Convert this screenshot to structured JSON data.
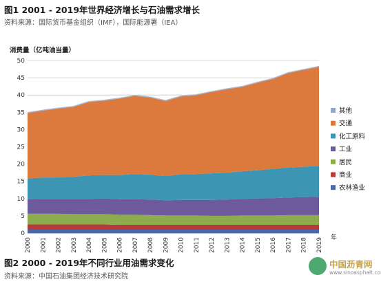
{
  "header": {
    "title": "图1   2001 - 2019年世界经济增长与石油需求增长",
    "source": "资料来源：国际货币基金组织（IMF），国际能源署（IEA）"
  },
  "footer": {
    "title": "图2   2000 - 2019年不同行业用油需求变化",
    "source": "资料来源：中国石油集团经济技术研究院"
  },
  "watermark": {
    "name": "中国沥青网",
    "url": "www.sinoasphalt.com"
  },
  "chart_data": {
    "type": "area",
    "stacked": true,
    "ylabel": "消费量（亿吨油当量）",
    "xlabel": "年",
    "ylim": [
      0,
      50
    ],
    "yticks": [
      0,
      5,
      10,
      15,
      20,
      25,
      30,
      35,
      40,
      45,
      50
    ],
    "grid": true,
    "legend_position": "right",
    "x": [
      "2000",
      "2001",
      "2002",
      "2003",
      "2004",
      "2005",
      "2006",
      "2007",
      "2008",
      "2009",
      "2010",
      "2011",
      "2012",
      "2013",
      "2014",
      "2015",
      "2016",
      "2017",
      "2018",
      "2019"
    ],
    "series": [
      {
        "name": "农林渔业",
        "color": "#4a67a8",
        "values": [
          1.0,
          1.0,
          1.0,
          1.0,
          1.0,
          1.0,
          1.0,
          1.0,
          1.0,
          1.0,
          1.0,
          1.0,
          1.0,
          1.0,
          1.0,
          1.0,
          1.0,
          1.0,
          1.0,
          1.0
        ]
      },
      {
        "name": "商业",
        "color": "#b8393b",
        "values": [
          1.5,
          1.5,
          1.5,
          1.5,
          1.5,
          1.5,
          1.4,
          1.4,
          1.4,
          1.4,
          1.4,
          1.4,
          1.4,
          1.4,
          1.4,
          1.4,
          1.4,
          1.4,
          1.4,
          1.4
        ]
      },
      {
        "name": "居民",
        "color": "#8cac4e",
        "values": [
          3.1,
          3.1,
          3.1,
          3.0,
          3.0,
          3.0,
          2.9,
          2.9,
          2.8,
          2.7,
          2.7,
          2.7,
          2.6,
          2.6,
          2.7,
          2.7,
          2.7,
          2.8,
          2.8,
          2.8
        ]
      },
      {
        "name": "工业",
        "color": "#6c5a9c",
        "values": [
          4.2,
          4.3,
          4.3,
          4.4,
          4.4,
          4.5,
          4.5,
          4.5,
          4.5,
          4.4,
          4.5,
          4.5,
          4.6,
          4.7,
          4.8,
          4.9,
          5.0,
          5.1,
          5.2,
          5.3
        ]
      },
      {
        "name": "化工原料",
        "color": "#3b95b3",
        "values": [
          6.0,
          6.2,
          6.2,
          6.4,
          6.8,
          6.8,
          7.0,
          7.3,
          7.2,
          7.0,
          7.4,
          7.5,
          7.7,
          7.8,
          8.0,
          8.2,
          8.5,
          8.7,
          8.8,
          9.0
        ]
      },
      {
        "name": "交通",
        "color": "#db7a3c",
        "values": [
          19.0,
          19.4,
          20.0,
          20.3,
          21.3,
          21.6,
          22.2,
          22.7,
          22.4,
          21.8,
          22.6,
          22.9,
          23.6,
          24.2,
          24.5,
          25.4,
          26.1,
          27.4,
          28.1,
          28.7
        ]
      },
      {
        "name": "其他",
        "color": "#8fa7c8",
        "values": [
          0.1,
          0.1,
          0.1,
          0.1,
          0.1,
          0.1,
          0.1,
          0.1,
          0.1,
          0.1,
          0.1,
          0.1,
          0.1,
          0.1,
          0.1,
          0.1,
          0.1,
          0.1,
          0.1,
          0.1
        ]
      }
    ],
    "legend_order": [
      "其他",
      "交通",
      "化工原料",
      "工业",
      "居民",
      "商业",
      "农林渔业"
    ]
  }
}
